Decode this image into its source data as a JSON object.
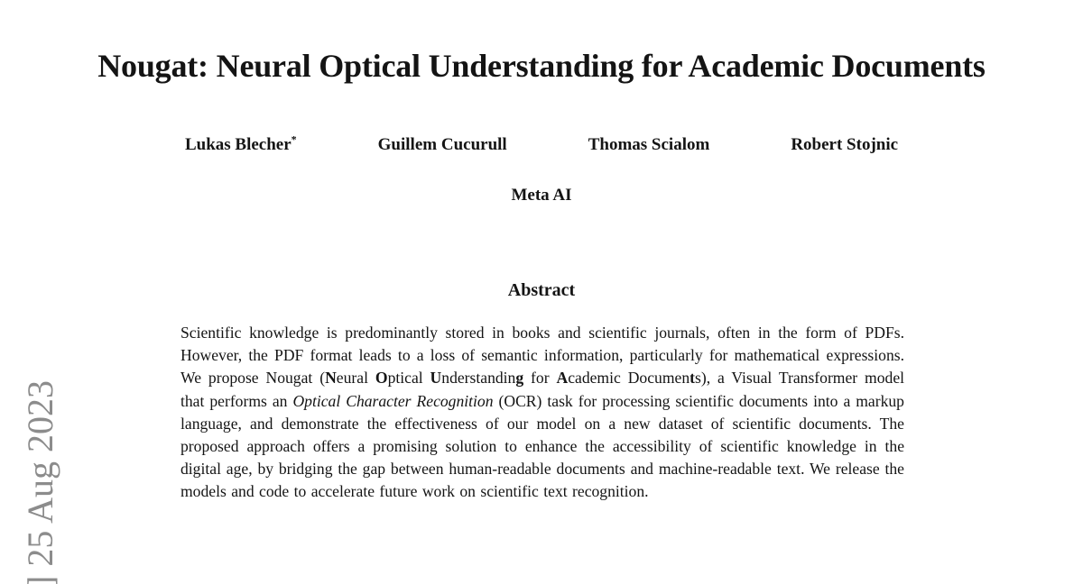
{
  "page": {
    "title": "Nougat: Neural Optical Understanding for Academic Documents",
    "affiliation": "Meta AI",
    "abstract_heading": "Abstract"
  },
  "authors": [
    {
      "name": "Lukas Blecher",
      "marker": "*"
    },
    {
      "name": "Guillem Cucurull",
      "marker": ""
    },
    {
      "name": "Thomas Scialom",
      "marker": ""
    },
    {
      "name": "Robert Stojnic",
      "marker": ""
    }
  ],
  "abstract_segments": [
    {
      "t": "Scientific knowledge is predominantly stored in books and scientific journals, often in the form of PDFs. However, the PDF format leads to a loss of semantic information, particularly for mathematical expressions. We propose Nougat ("
    },
    {
      "t": "N",
      "b": true
    },
    {
      "t": "eural "
    },
    {
      "t": "O",
      "b": true
    },
    {
      "t": "ptical "
    },
    {
      "t": "U",
      "b": true
    },
    {
      "t": "nderstandin"
    },
    {
      "t": "g",
      "b": true
    },
    {
      "t": " for "
    },
    {
      "t": "A",
      "b": true
    },
    {
      "t": "cademic Documen"
    },
    {
      "t": "t",
      "b": true
    },
    {
      "t": "s), a Visual Transformer model that performs an "
    },
    {
      "t": "Optical Character Recognition",
      "i": true
    },
    {
      "t": " (OCR) task for processing scientific documents into a markup language, and demonstrate the effectiveness of our model on a new dataset of scientific documents. The proposed approach offers a promising solution to enhance the accessibility of scientific knowledge in the digital age, by bridging the gap between human-readable documents and machine-readable text. We release the models and code to accelerate future work on scientific text recognition."
    }
  ],
  "watermark": {
    "bracket": "]",
    "date": "25 Aug 2023",
    "color": "#8c8c8c"
  }
}
